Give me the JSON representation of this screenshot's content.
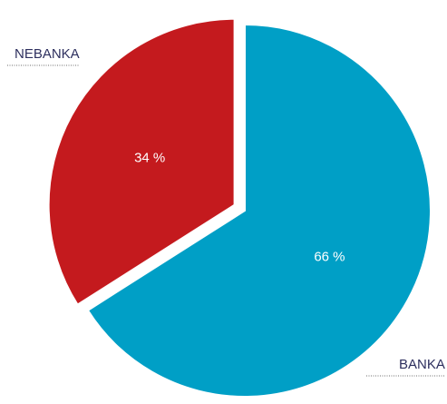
{
  "chart_data": {
    "type": "pie",
    "title": "",
    "categories": [
      "BANKA",
      "NEBANKA"
    ],
    "values": [
      66,
      34
    ],
    "value_labels": [
      "66 %",
      "34 %"
    ],
    "colors": [
      "#009fc6",
      "#c41a1e"
    ],
    "exploded": "NEBANKA",
    "legend": "external labels with leader lines",
    "labels": {
      "top_left": "NEBANKA",
      "bottom_right": "BANKA"
    }
  }
}
